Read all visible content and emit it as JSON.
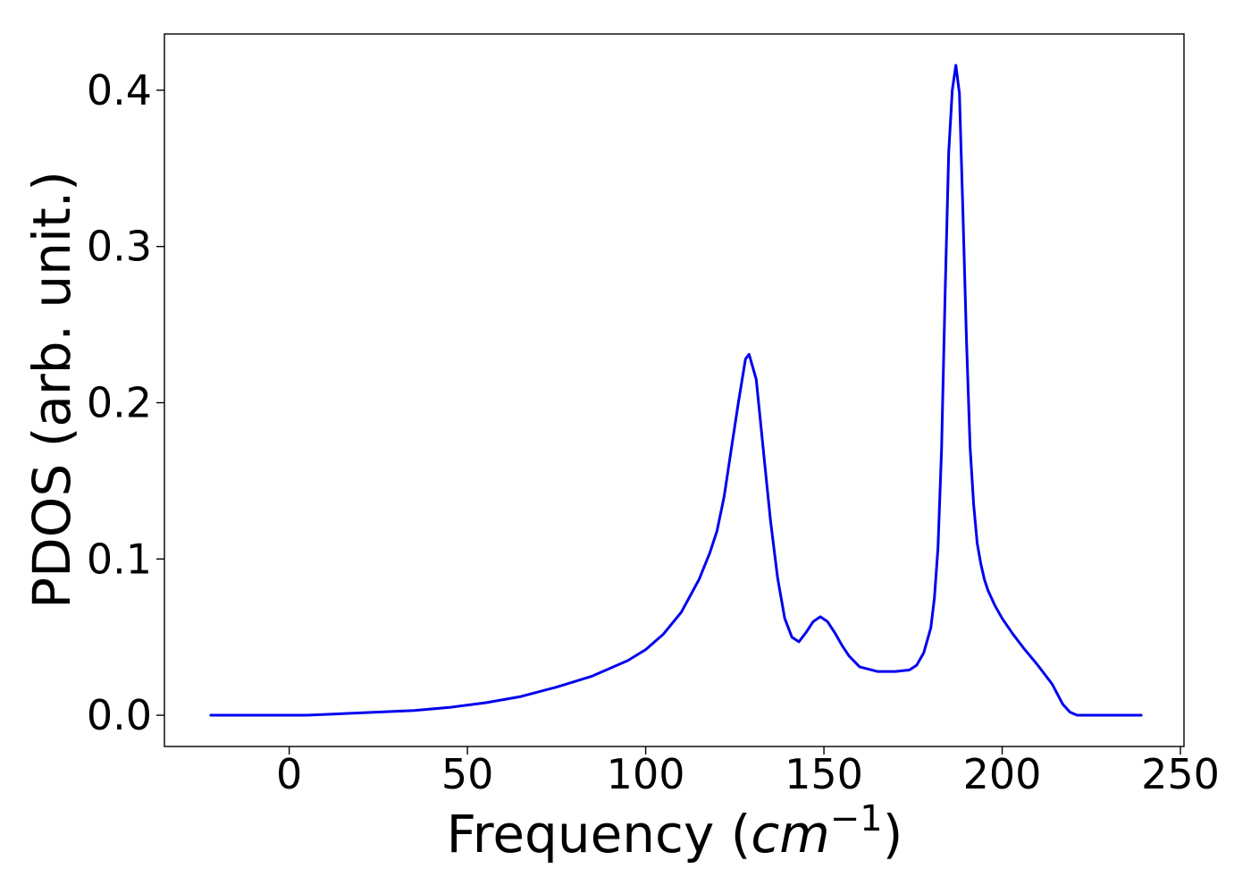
{
  "chart_data": {
    "type": "line",
    "title": "",
    "xlabel": {
      "prefix": "Frequency (",
      "var": "cm",
      "sup": "−1",
      "suffix": ")"
    },
    "ylabel": "PDOS (arb. unit.)",
    "xlim": [
      -35,
      251
    ],
    "ylim": [
      -0.02,
      0.436
    ],
    "xticks": [
      0,
      50,
      100,
      150,
      200,
      250
    ],
    "xtick_labels": [
      "0",
      "50",
      "100",
      "150",
      "200",
      "250"
    ],
    "yticks": [
      0.0,
      0.1,
      0.2,
      0.3,
      0.4
    ],
    "ytick_labels": [
      "0.0",
      "0.1",
      "0.2",
      "0.3",
      "0.4"
    ],
    "grid": false,
    "legend": false,
    "series": [
      {
        "color": "#0000ee",
        "x": [
          -22,
          0,
          5,
          15,
          25,
          35,
          45,
          55,
          65,
          75,
          85,
          95,
          100,
          105,
          110,
          115,
          118,
          120,
          122,
          124,
          126,
          128,
          129,
          131,
          133,
          135,
          137,
          139,
          141,
          143,
          145,
          147,
          149,
          151,
          153,
          155,
          157,
          160,
          165,
          170,
          174,
          176,
          178,
          180,
          181,
          182,
          183,
          184,
          185,
          186,
          187,
          188,
          189,
          190,
          191,
          192,
          193,
          194,
          195,
          196,
          198,
          200,
          203,
          206,
          210,
          214,
          217,
          219,
          221,
          223,
          230,
          239
        ],
        "y": [
          0.0,
          0.0,
          0.0,
          0.001,
          0.002,
          0.003,
          0.005,
          0.008,
          0.012,
          0.018,
          0.025,
          0.035,
          0.042,
          0.052,
          0.066,
          0.087,
          0.104,
          0.118,
          0.14,
          0.17,
          0.2,
          0.228,
          0.231,
          0.215,
          0.17,
          0.125,
          0.088,
          0.062,
          0.05,
          0.047,
          0.053,
          0.06,
          0.063,
          0.06,
          0.053,
          0.045,
          0.038,
          0.031,
          0.028,
          0.028,
          0.029,
          0.032,
          0.04,
          0.056,
          0.075,
          0.107,
          0.17,
          0.27,
          0.36,
          0.4,
          0.416,
          0.398,
          0.32,
          0.24,
          0.172,
          0.135,
          0.11,
          0.097,
          0.087,
          0.08,
          0.07,
          0.062,
          0.052,
          0.043,
          0.032,
          0.02,
          0.007,
          0.002,
          0.0,
          0.0,
          0.0,
          0.0
        ]
      }
    ]
  }
}
